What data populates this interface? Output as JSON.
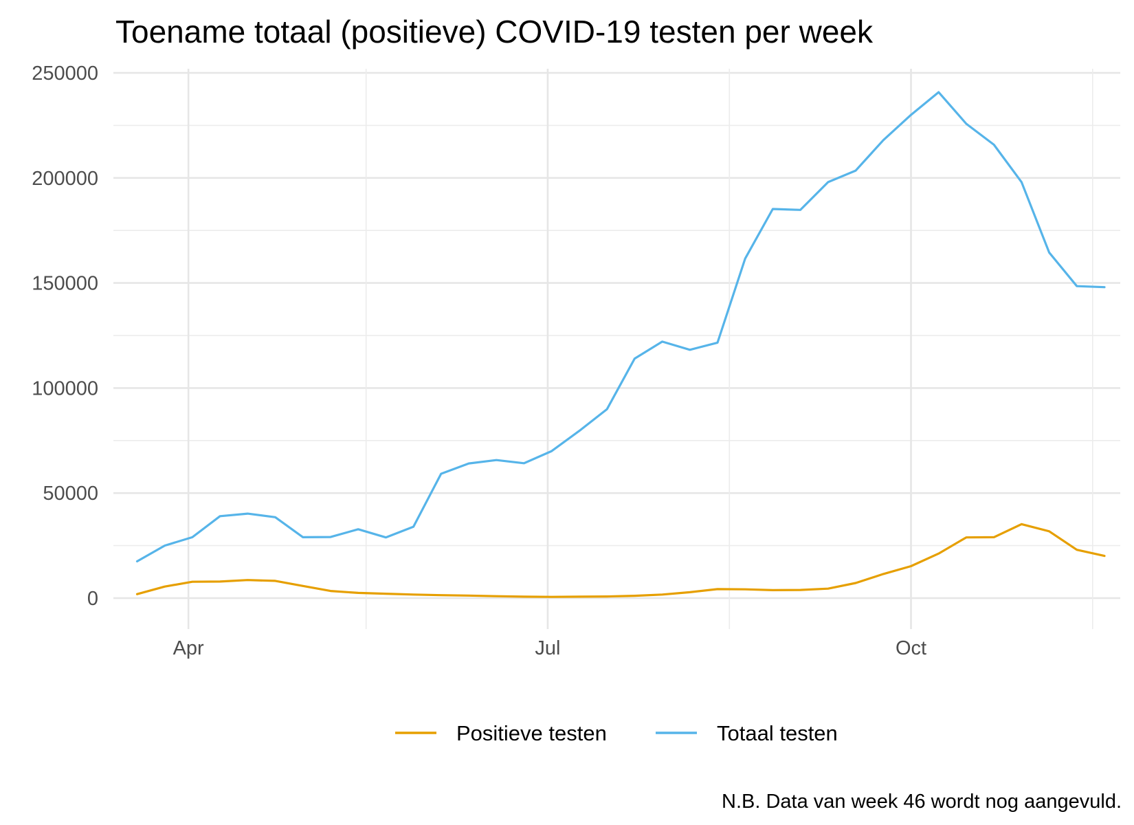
{
  "chart_data": {
    "type": "line",
    "title": "Toename totaal (positieve) COVID-19 testen per week",
    "caption": "N.B. Data van week 46 wordt nog aangevuld.",
    "xlabel": "",
    "ylabel": "",
    "ylim": [
      0,
      250000
    ],
    "yticks": [
      0,
      50000,
      100000,
      150000,
      200000,
      250000
    ],
    "ytick_labels": [
      "0",
      "50000",
      "100000",
      "150000",
      "200000",
      "250000"
    ],
    "xlim": [
      "2020-03-13",
      "2020-11-23"
    ],
    "xticks": [
      {
        "date": "2020-04-01",
        "label": "Apr"
      },
      {
        "date": "2020-07-01",
        "label": "Jul"
      },
      {
        "date": "2020-10-01",
        "label": "Oct"
      }
    ],
    "x_minor_gridlines": [
      "2020-05-16",
      "2020-08-16",
      "2020-11-16"
    ],
    "grid": true,
    "legend_position": "bottom",
    "x": [
      "2020-03-19",
      "2020-03-26",
      "2020-04-02",
      "2020-04-09",
      "2020-04-16",
      "2020-04-23",
      "2020-04-30",
      "2020-05-07",
      "2020-05-14",
      "2020-05-21",
      "2020-05-28",
      "2020-06-04",
      "2020-06-11",
      "2020-06-18",
      "2020-06-25",
      "2020-07-02",
      "2020-07-09",
      "2020-07-16",
      "2020-07-23",
      "2020-07-30",
      "2020-08-06",
      "2020-08-13",
      "2020-08-20",
      "2020-08-27",
      "2020-09-03",
      "2020-09-10",
      "2020-09-17",
      "2020-09-24",
      "2020-10-01",
      "2020-10-08",
      "2020-10-15",
      "2020-10-22",
      "2020-10-29",
      "2020-11-05",
      "2020-11-12",
      "2020-11-19"
    ],
    "series": [
      {
        "name": "Positieve testen",
        "color": "#E69F00",
        "values": [
          1900,
          5500,
          7800,
          7900,
          8600,
          8200,
          5800,
          3400,
          2500,
          2100,
          1700,
          1400,
          1200,
          900,
          700,
          600,
          700,
          800,
          1100,
          1700,
          2800,
          4300,
          4200,
          3800,
          3900,
          4500,
          7200,
          11500,
          15200,
          21200,
          28900,
          29000,
          35200,
          31800,
          23000,
          20100
        ]
      },
      {
        "name": "Totaal testen",
        "color": "#56B4E9",
        "values": [
          17500,
          25000,
          29000,
          39000,
          40200,
          38500,
          29000,
          29100,
          32800,
          28900,
          34000,
          59200,
          64100,
          65700,
          64200,
          70000,
          79600,
          89900,
          114000,
          122100,
          118200,
          121600,
          161600,
          185200,
          184800,
          198000,
          203500,
          218000,
          230000,
          240800,
          225800,
          215800,
          198000,
          164500,
          148500,
          148000
        ]
      }
    ]
  }
}
